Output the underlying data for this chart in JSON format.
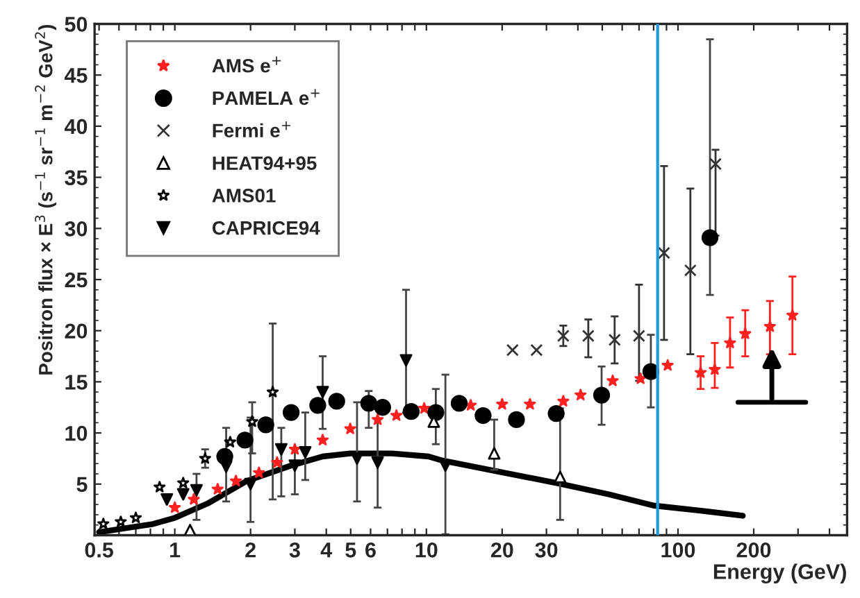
{
  "chart_data": {
    "type": "scatter",
    "xlabel": "Energy (GeV)",
    "ylabel": "Positron flux × E$^{3}$ (s$^{−1}$ sr$^{−1}$ m$^{−2}$ GeV$^{2}$)",
    "log": "x",
    "xlim": [
      0.48,
      470
    ],
    "ylim": [
      0,
      50
    ],
    "xticks": [
      0.5,
      {
        "value": 0.6,
        "label": null
      },
      {
        "value": 0.7,
        "label": null
      },
      {
        "value": 0.8,
        "label": null
      },
      {
        "value": 0.9,
        "label": null
      },
      1,
      2,
      3,
      4,
      5,
      6,
      {
        "value": 7,
        "label": null
      },
      {
        "value": 8,
        "label": null
      },
      {
        "value": 9,
        "label": null
      },
      10,
      20,
      30,
      {
        "value": 40,
        "label": null
      },
      {
        "value": 50,
        "label": null
      },
      {
        "value": 60,
        "label": null
      },
      {
        "value": 70,
        "label": null
      },
      {
        "value": 80,
        "label": null
      },
      {
        "value": 90,
        "label": null
      },
      100,
      200,
      {
        "value": 300,
        "label": null
      },
      {
        "value": 400,
        "label": null
      }
    ],
    "yticks": [
      5,
      10,
      15,
      20,
      25,
      30,
      35,
      40,
      45,
      50
    ],
    "grid": false,
    "legend": "top left",
    "ref_lines": [
      {
        "axis": "x",
        "value": 83,
        "color": "#1e9be0"
      }
    ],
    "series": [
      {
        "name": "AMS e$^{+}$",
        "color": "#ff2020",
        "marker": "star",
        "x": [
          1.0,
          1.19,
          1.48,
          1.75,
          2.16,
          2.55,
          3.0,
          3.87,
          4.98,
          6.4,
          7.6,
          9.8,
          15,
          20,
          25.8,
          35,
          41,
          55,
          71,
          91,
          123,
          140,
          161,
          185,
          232,
          285
        ],
        "values": [
          2.7,
          3.5,
          4.5,
          5.3,
          6.1,
          7.1,
          8.4,
          9.3,
          10.4,
          11.3,
          11.7,
          12.4,
          12.7,
          12.8,
          12.8,
          13.1,
          13.7,
          15.1,
          15.3,
          16.6,
          15.9,
          16.2,
          18.8,
          19.7,
          20.4,
          21.5
        ],
        "errors": [
          null,
          null,
          null,
          null,
          null,
          null,
          null,
          null,
          null,
          null,
          null,
          null,
          null,
          null,
          null,
          null,
          null,
          null,
          null,
          null,
          [
            14.3,
            17.5
          ],
          [
            14.4,
            18.8
          ],
          [
            16.4,
            21.3
          ],
          [
            17.5,
            22.0
          ],
          [
            17.7,
            22.9
          ],
          [
            17.7,
            25.3
          ]
        ]
      },
      {
        "name": "PAMELA e$^{+}$",
        "color": "#000000",
        "marker": "circle",
        "x": [
          1.58,
          1.9,
          2.3,
          2.9,
          3.7,
          4.4,
          5.9,
          6.7,
          8.7,
          10.9,
          13.5,
          16.8,
          22.8,
          32.8,
          49.7,
          78,
          134
        ],
        "values": [
          7.7,
          9.3,
          10.8,
          12.0,
          12.7,
          13.1,
          12.9,
          12.5,
          12.1,
          12.0,
          12.9,
          11.7,
          11.3,
          11.9,
          13.7,
          16.0,
          29.1
        ],
        "errors": [
          null,
          null,
          null,
          null,
          null,
          null,
          [
            10.5,
            14.1
          ],
          null,
          null,
          [
            8.9,
            14.3
          ],
          null,
          null,
          null,
          null,
          [
            10.8,
            16.5
          ],
          [
            12.5,
            19.6
          ],
          [
            23.5,
            48.5
          ]
        ]
      },
      {
        "name": "Fermi e$^{+}$",
        "color": "#333333",
        "marker": "cross",
        "x": [
          22,
          27.4,
          35,
          44,
          56,
          70,
          88,
          112,
          141
        ],
        "values": [
          18.1,
          18.1,
          19.5,
          19.5,
          19.1,
          19.5,
          27.6,
          25.9,
          36.3
        ],
        "errors": [
          null,
          null,
          [
            18.5,
            20.5
          ],
          [
            17.4,
            21.1
          ],
          [
            16.8,
            21.4
          ],
          [
            15.1,
            24.5
          ],
          [
            19.1,
            36.1
          ],
          [
            17.7,
            33.9
          ],
          [
            29.3,
            37.7
          ]
        ]
      },
      {
        "name": "HEAT94+95",
        "color": "#000000",
        "marker": "triangle",
        "x": [
          1.15,
          10.7,
          18.6,
          34
        ],
        "values": [
          0.5,
          11.1,
          8.0,
          5.7
        ],
        "errors": [
          null,
          null,
          [
            6.4,
            11.3
          ],
          [
            1.5,
            12.4
          ]
        ]
      },
      {
        "name": "AMS01",
        "color": "#000000",
        "marker": "star",
        "x": [
          0.52,
          0.61,
          0.7,
          0.87,
          1.08,
          1.32,
          1.66,
          2.03,
          2.45
        ],
        "values": [
          1.1,
          1.3,
          1.7,
          4.7,
          5.1,
          7.5,
          9.1,
          11.1,
          14.0
        ],
        "errors": [
          null,
          null,
          null,
          null,
          null,
          [
            6.6,
            8.4
          ],
          null,
          [
            8.0,
            13.0
          ],
          [
            3.5,
            20.7
          ]
        ]
      },
      {
        "name": "CAPRICE94",
        "color": "#000000",
        "marker": "triangle_down",
        "x": [
          0.93,
          1.08,
          1.22,
          1.6,
          2.0,
          2.65,
          3.0,
          3.3,
          3.87,
          5.3,
          6.4,
          8.3,
          11.9
        ],
        "values": [
          3.5,
          4.0,
          4.4,
          6.7,
          5.0,
          8.4,
          6.8,
          8.1,
          14.0,
          7.5,
          7.1,
          17.1,
          6.8
        ],
        "errors": [
          null,
          null,
          [
            1.5,
            6.0
          ],
          [
            3.3,
            10.5
          ],
          [
            1.3,
            11.5
          ],
          [
            3.8,
            10.5
          ],
          [
            4.0,
            8.5
          ],
          [
            5.4,
            12.0
          ],
          [
            10.4,
            17.5
          ],
          [
            3.3,
            13.0
          ],
          [
            2.7,
            11.3
          ],
          [
            12.0,
            24.0
          ],
          [
            0.1,
            15.7
          ]
        ]
      },
      {
        "type": "line",
        "color": "#000000",
        "marker": "none",
        "line_style": "solid",
        "x": [
          0.5,
          0.82,
          1.0,
          1.35,
          1.93,
          2.89,
          3.87,
          4.98,
          7.3,
          10.2,
          11.6,
          18.6,
          33,
          53,
          80,
          123,
          181
        ],
        "values": [
          0.3,
          1.1,
          1.7,
          3.1,
          5.3,
          6.8,
          7.7,
          8.0,
          8.0,
          7.7,
          7.3,
          6.3,
          5.1,
          4.0,
          2.9,
          2.4,
          1.9
        ]
      }
    ]
  }
}
